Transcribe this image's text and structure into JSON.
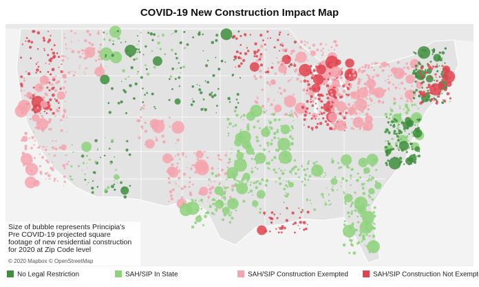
{
  "title": "COVID-19 New Construction Impact Map",
  "note": [
    "Size of bubble represents Principia's",
    "Pre COVID-19 projected square",
    "footage of new residential construction",
    "for 2020 at Zip Code level"
  ],
  "attribution": "© 2020 Mapbox © OpenStreetMap",
  "legend": [
    {
      "name": "No Legal Restriction",
      "color": "#3e8e3e"
    },
    {
      "name": "SAH/SIP In State",
      "color": "#8ed27c"
    },
    {
      "name": "SAH/SIP Construction Exempted",
      "color": "#f5a3ad"
    },
    {
      "name": "SAH/SIP Construction Not Exempted",
      "color": "#e0434f"
    }
  ]
}
